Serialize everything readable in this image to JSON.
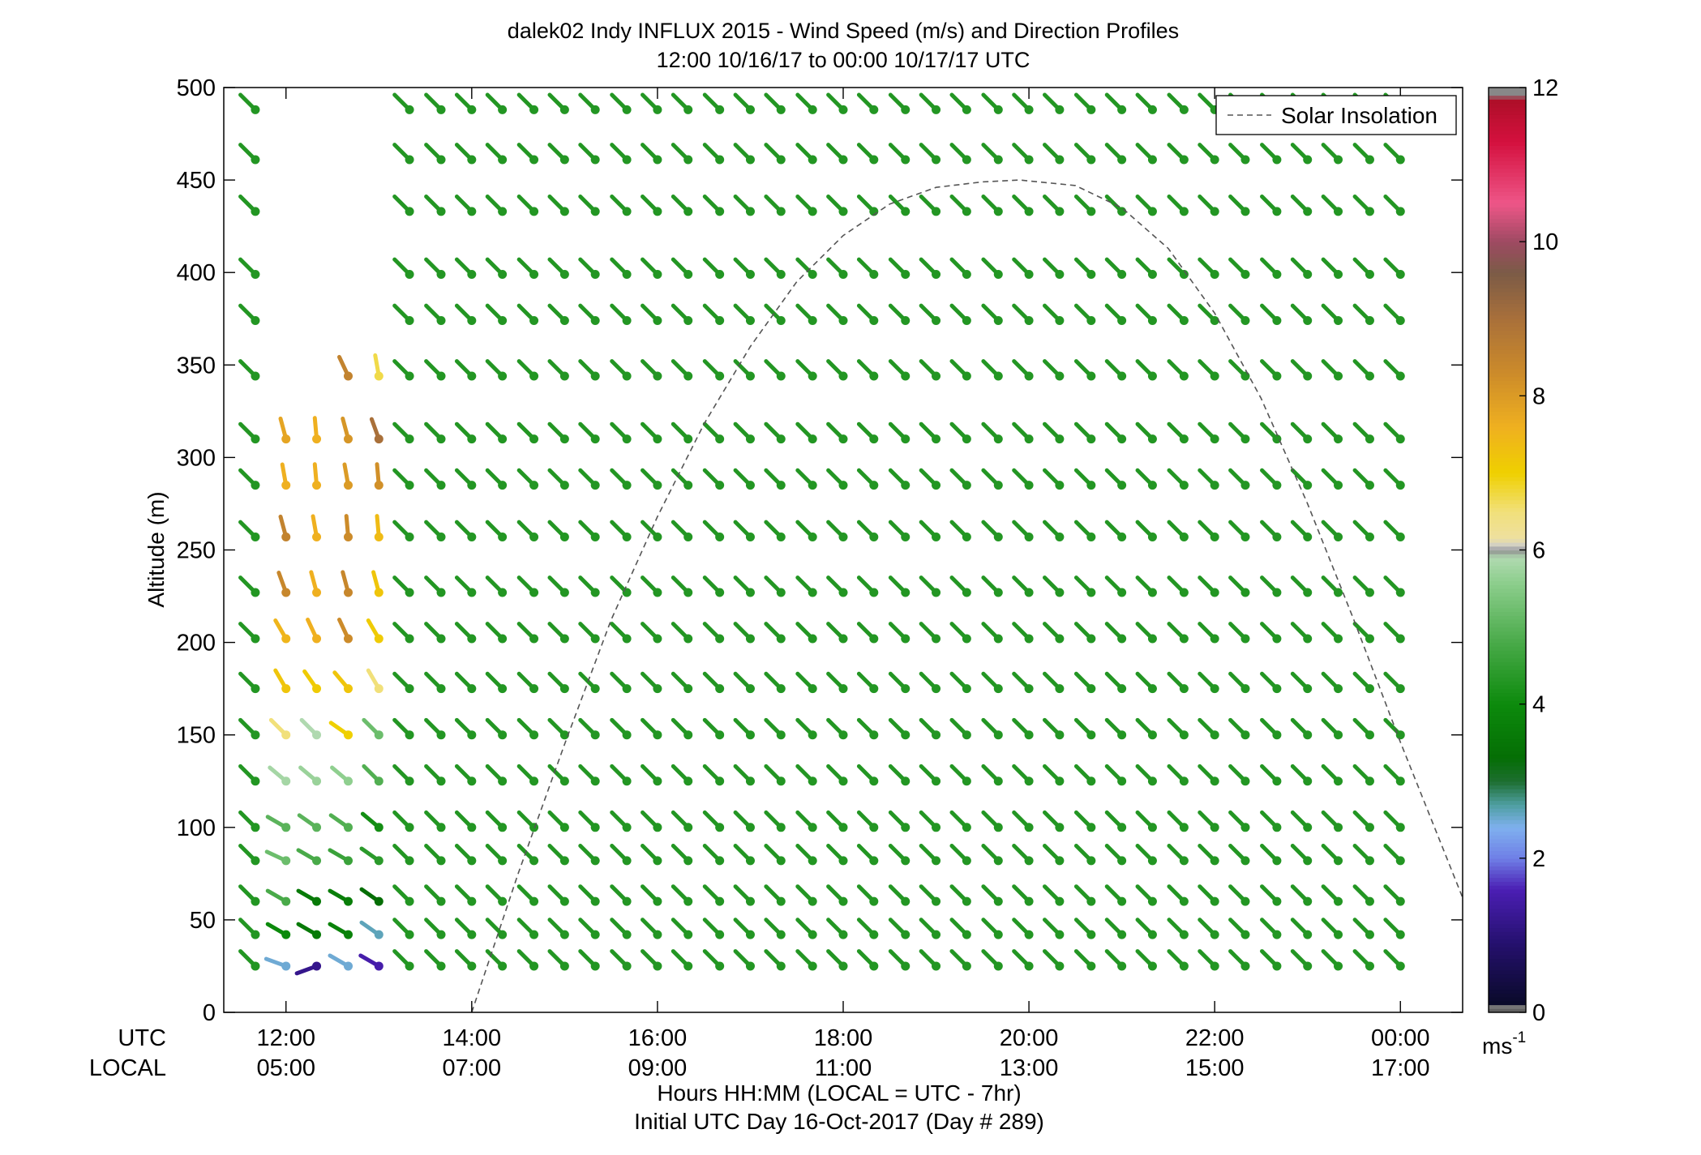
{
  "chart_data": {
    "type": "wind-barb profile",
    "title": "dalek02 Indy INFLUX 2015 - Wind Speed (m/s) and Direction Profiles",
    "subtitle": "12:00 10/16/17 to 00:00 10/17/17  UTC",
    "ylabel": "Altitude (m)",
    "ylim": [
      0,
      500
    ],
    "yticks": [
      "0",
      "50",
      "100",
      "150",
      "200",
      "250",
      "300",
      "350",
      "400",
      "450",
      "500"
    ],
    "xlim_hours_utc": [
      11.33,
      24.67
    ],
    "xticks_utc": [
      "12:00",
      "14:00",
      "16:00",
      "18:00",
      "20:00",
      "22:00",
      "00:00"
    ],
    "xticks_local": [
      "05:00",
      "07:00",
      "09:00",
      "11:00",
      "13:00",
      "15:00",
      "17:00"
    ],
    "xrow_label_utc": "UTC",
    "xrow_label_local": "LOCAL",
    "xlabel": "Hours HH:MM  (LOCAL = UTC - 7hr)",
    "xlabel2": "Initial UTC Day 16-Oct-2017 (Day # 289)",
    "legend": {
      "entry": "Solar Insolation",
      "placement": "top-right"
    },
    "solar_insolation_curve": {
      "x_utc": [
        14.0,
        14.5,
        15.0,
        15.5,
        16.0,
        16.5,
        17.0,
        17.5,
        18.0,
        18.5,
        19.0,
        19.5,
        19.9,
        20.5,
        21.0,
        21.5,
        22.0,
        22.5,
        23.0,
        23.5,
        24.0,
        24.67
      ],
      "y_alt": [
        0,
        75,
        145,
        212,
        268,
        318,
        360,
        395,
        420,
        437,
        446,
        449,
        450,
        447,
        435,
        413,
        378,
        332,
        275,
        212,
        146,
        62
      ]
    },
    "colorbar": {
      "range": [
        0,
        12
      ],
      "ticks": [
        "0",
        "2",
        "4",
        "6",
        "8",
        "10",
        "12"
      ],
      "unit": "ms",
      "unit_exponent": "-1",
      "stops": [
        {
          "v": 0,
          "c": "#555555"
        },
        {
          "v": 0.08,
          "c": "#777777"
        },
        {
          "v": 0.12,
          "c": "#0a0a2a"
        },
        {
          "v": 0.9,
          "c": "#25106e"
        },
        {
          "v": 1.6,
          "c": "#4b1fb4"
        },
        {
          "v": 2.0,
          "c": "#6f7fe6"
        },
        {
          "v": 2.4,
          "c": "#7fb0ee"
        },
        {
          "v": 2.7,
          "c": "#4e9ea0"
        },
        {
          "v": 3.0,
          "c": "#1d6e30"
        },
        {
          "v": 3.3,
          "c": "#056e05"
        },
        {
          "v": 4.0,
          "c": "#0c8a0c"
        },
        {
          "v": 4.8,
          "c": "#49aa49"
        },
        {
          "v": 5.6,
          "c": "#8fcf8f"
        },
        {
          "v": 5.9,
          "c": "#b0d9b0"
        },
        {
          "v": 6.0,
          "c": "#909090"
        },
        {
          "v": 6.05,
          "c": "#cccccc"
        },
        {
          "v": 6.15,
          "c": "#eee0a0"
        },
        {
          "v": 6.5,
          "c": "#f1e07a"
        },
        {
          "v": 7.0,
          "c": "#efd000"
        },
        {
          "v": 7.6,
          "c": "#efb020"
        },
        {
          "v": 8.3,
          "c": "#cc8b2a"
        },
        {
          "v": 9.0,
          "c": "#a9703a"
        },
        {
          "v": 9.6,
          "c": "#7b5b47"
        },
        {
          "v": 10.0,
          "c": "#9e4a62"
        },
        {
          "v": 10.5,
          "c": "#ee5688"
        },
        {
          "v": 11.3,
          "c": "#d4103e"
        },
        {
          "v": 11.85,
          "c": "#ad0f28"
        },
        {
          "v": 11.9,
          "c": "#888888"
        },
        {
          "v": 12,
          "c": "#888888"
        }
      ]
    },
    "profile_times_utc": [
      11.67,
      12.0,
      12.33,
      12.67,
      13.0,
      13.33,
      13.67,
      14.0,
      14.33,
      14.67,
      15.0,
      15.33,
      15.67,
      16.0,
      16.33,
      16.67,
      17.0,
      17.33,
      17.67,
      18.0,
      18.33,
      18.67,
      19.0,
      19.33,
      19.67,
      20.0,
      20.33,
      20.67,
      21.0,
      21.33,
      21.67,
      22.0,
      22.33,
      22.67,
      23.0,
      23.33,
      23.67,
      24.0
    ],
    "profile_altitudes_m": [
      2,
      25,
      42,
      60,
      82,
      100,
      125,
      150,
      175,
      202,
      227,
      257,
      285,
      310,
      344,
      374,
      399,
      433,
      461,
      488
    ],
    "wind": {
      "note": "speed in m/s; direction in degrees the wind blows from (0 = north)",
      "profiles": [
        {
          "t": 12.0,
          "alt": [
            25,
            42,
            60,
            82,
            100,
            125,
            150,
            175,
            202,
            227,
            257,
            285,
            310
          ],
          "spd": [
            2.5,
            4.0,
            4.8,
            5.2,
            5.0,
            5.8,
            6.5,
            7.2,
            7.5,
            8.4,
            8.5,
            7.6,
            7.8
          ],
          "dir": [
            290,
            300,
            300,
            295,
            300,
            310,
            315,
            330,
            330,
            340,
            345,
            350,
            345
          ]
        },
        {
          "t": 12.33,
          "alt": [
            25,
            42,
            60,
            82,
            100,
            125,
            150,
            175,
            202,
            227,
            257,
            285,
            310
          ],
          "spd": [
            1.2,
            3.6,
            3.6,
            4.8,
            5.0,
            5.7,
            5.9,
            7.1,
            7.6,
            7.6,
            7.6,
            7.6,
            7.6
          ],
          "dir": [
            250,
            300,
            300,
            300,
            305,
            310,
            315,
            325,
            335,
            345,
            350,
            355,
            355
          ]
        },
        {
          "t": 12.67,
          "alt": [
            25,
            42,
            60,
            82,
            100,
            125,
            150,
            175,
            202,
            227,
            257,
            285,
            310,
            344
          ],
          "spd": [
            2.5,
            3.8,
            3.7,
            4.6,
            4.9,
            5.6,
            7.0,
            7.2,
            8.3,
            8.4,
            8.3,
            8.0,
            8.1,
            8.5
          ],
          "dir": [
            300,
            300,
            300,
            300,
            305,
            310,
            305,
            320,
            335,
            345,
            355,
            350,
            345,
            335
          ]
        },
        {
          "t": 13.0,
          "alt": [
            25,
            42,
            60,
            82,
            100,
            125,
            150,
            175,
            202,
            227,
            257,
            285,
            310,
            344
          ],
          "spd": [
            1.5,
            2.6,
            3.3,
            4.4,
            4.1,
            4.9,
            5.2,
            6.5,
            7.1,
            7.2,
            7.4,
            8.2,
            9.0,
            6.7
          ],
          "dir": [
            300,
            305,
            305,
            305,
            310,
            315,
            315,
            330,
            330,
            345,
            355,
            355,
            340,
            350
          ]
        }
      ],
      "default_speed": 4.3,
      "default_direction": 315
    }
  }
}
